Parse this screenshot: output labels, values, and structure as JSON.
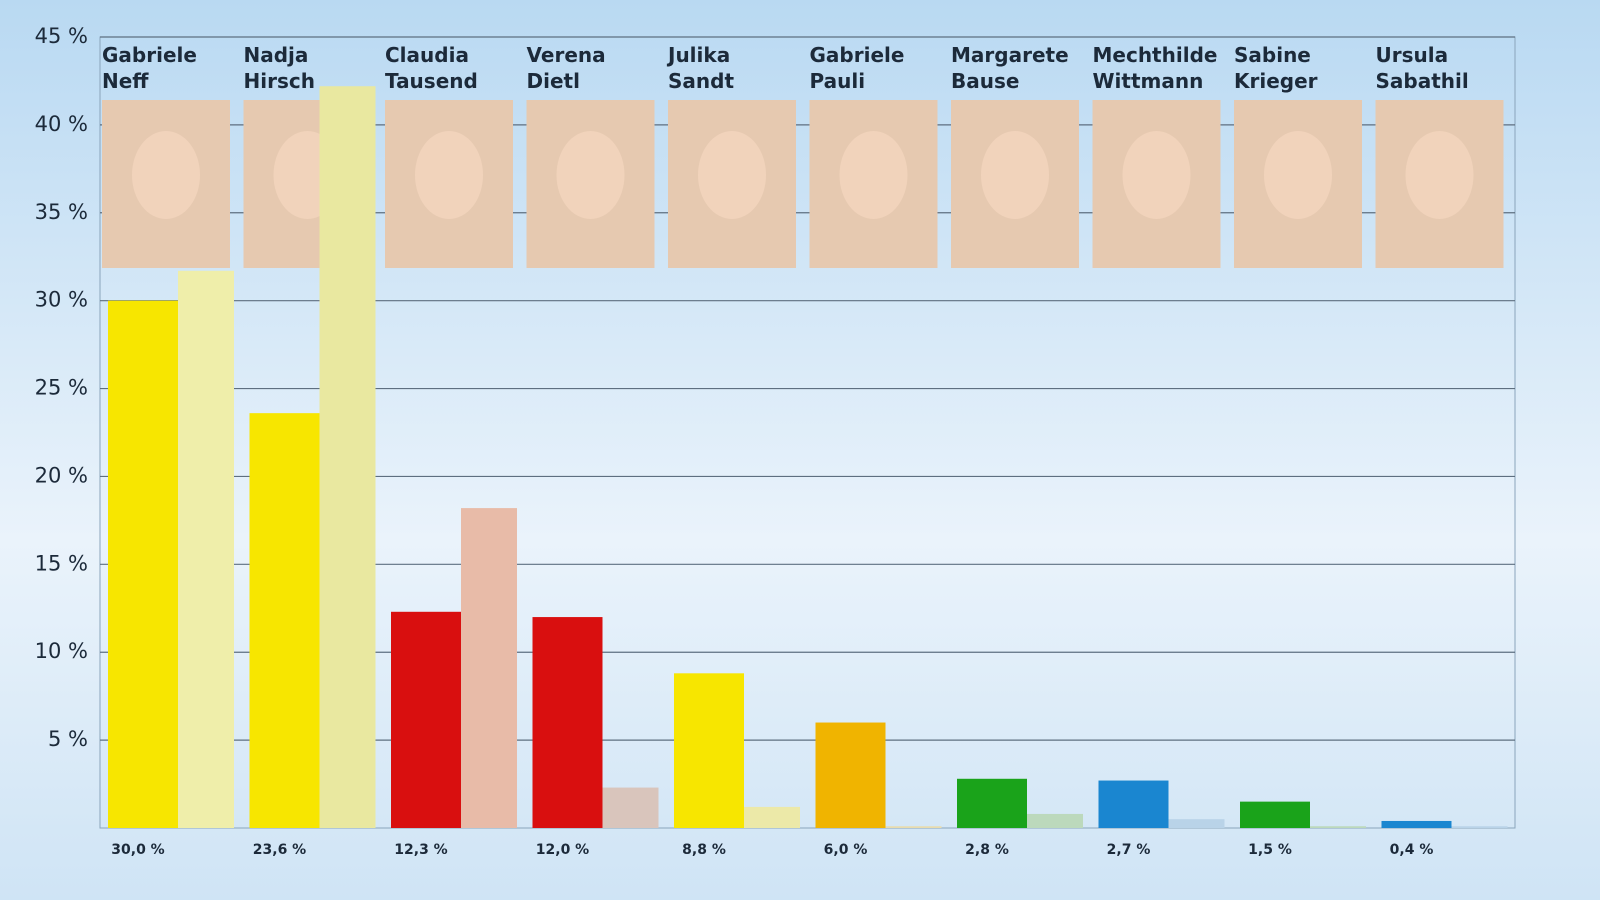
{
  "chart_data": {
    "type": "bar",
    "categories": [
      "Gabriele Neff",
      "Nadja Hirsch",
      "Claudia Tausend",
      "Verena Dietl",
      "Julika Sandt",
      "Gabriele Pauli",
      "Margarete Bause",
      "Mechthilde Wittmann",
      "Sabine Krieger",
      "Ursula Sabathil"
    ],
    "series": [
      {
        "colors": [
          "#f7e600",
          "#f7e600",
          "#d90f0f",
          "#d90f0f",
          "#f7e600",
          "#f0b400",
          "#1aa31a",
          "#1a86d0",
          "#1aa31a",
          "#1a86d0"
        ],
        "values": [
          30.0,
          23.6,
          12.3,
          12.0,
          8.8,
          6.0,
          2.8,
          2.7,
          1.5,
          0.4
        ],
        "value_labels": [
          "30,0 %",
          "23,6 %",
          "12,3 %",
          "12,0 %",
          "8,8 %",
          "6,0 %",
          "2,8 %",
          "2,7 %",
          "1,5 %",
          "0,4 %"
        ]
      },
      {
        "colors": [
          "#efeeaa",
          "#e9e8a0",
          "#e8bba8",
          "#d9c5bc",
          "#ece9a8",
          "#e8dcae",
          "#bcd9bc",
          "#b9d3e8",
          "#bcd9bc",
          "#b9d3e8"
        ],
        "values": [
          31.7,
          42.2,
          18.2,
          2.3,
          1.2,
          0.1,
          0.8,
          0.5,
          0.1,
          0.1
        ]
      }
    ],
    "ylim": [
      0,
      45
    ],
    "yticks": [
      {
        "value": 5,
        "label": "5 %"
      },
      {
        "value": 10,
        "label": "10 %"
      },
      {
        "value": 15,
        "label": "15 %"
      },
      {
        "value": 20,
        "label": "20 %"
      },
      {
        "value": 25,
        "label": "25 %"
      },
      {
        "value": 30,
        "label": "30 %"
      },
      {
        "value": 35,
        "label": "35 %"
      },
      {
        "value": 40,
        "label": "40 %"
      },
      {
        "value": 45,
        "label": "45 %"
      }
    ],
    "grid": true
  }
}
